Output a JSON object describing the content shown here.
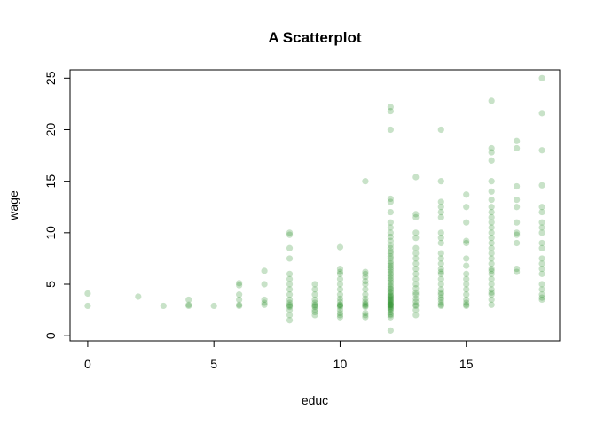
{
  "chart_data": {
    "type": "scatter",
    "title": "A Scatterplot",
    "xlabel": "educ",
    "ylabel": "wage",
    "xlim": [
      -0.7,
      18.7
    ],
    "ylim": [
      -0.5,
      25.8
    ],
    "xticks": [
      0,
      5,
      10,
      15
    ],
    "yticks": [
      0,
      5,
      10,
      15,
      20,
      25
    ],
    "grid": false,
    "legend": "none",
    "point_color": "#228B22",
    "point_opacity": 0.25,
    "series": [
      {
        "points": [
          [
            0,
            4.1
          ],
          [
            0,
            2.9
          ],
          [
            2,
            3.8
          ],
          [
            3,
            2.9
          ],
          [
            4,
            3.5
          ],
          [
            4,
            3.0
          ],
          [
            4,
            2.9
          ],
          [
            5,
            2.9
          ],
          [
            6,
            5.1
          ],
          [
            6,
            4.9
          ],
          [
            6,
            4.0
          ],
          [
            6,
            3.5
          ],
          [
            6,
            3.0
          ],
          [
            6,
            2.9
          ],
          [
            7,
            6.3
          ],
          [
            7,
            5.0
          ],
          [
            7,
            3.5
          ],
          [
            7,
            3.2
          ],
          [
            7,
            3.0
          ],
          [
            8,
            10.0
          ],
          [
            8,
            9.8
          ],
          [
            8,
            8.5
          ],
          [
            8,
            7.5
          ],
          [
            8,
            6.0
          ],
          [
            8,
            5.5
          ],
          [
            8,
            5.0
          ],
          [
            8,
            4.5
          ],
          [
            8,
            4.0
          ],
          [
            8,
            3.5
          ],
          [
            8,
            3.2
          ],
          [
            8,
            3.0
          ],
          [
            8,
            2.9
          ],
          [
            8,
            2.8
          ],
          [
            8,
            2.5
          ],
          [
            8,
            2.0
          ],
          [
            8,
            1.5
          ],
          [
            9,
            5.0
          ],
          [
            9,
            4.5
          ],
          [
            9,
            4.0
          ],
          [
            9,
            3.5
          ],
          [
            9,
            3.2
          ],
          [
            9,
            3.0
          ],
          [
            9,
            2.9
          ],
          [
            9,
            2.8
          ],
          [
            9,
            2.5
          ],
          [
            9,
            2.3
          ],
          [
            9,
            2.0
          ],
          [
            10,
            8.6
          ],
          [
            10,
            6.5
          ],
          [
            10,
            6.2
          ],
          [
            10,
            6.0
          ],
          [
            10,
            5.5
          ],
          [
            10,
            5.0
          ],
          [
            10,
            4.5
          ],
          [
            10,
            4.0
          ],
          [
            10,
            3.6
          ],
          [
            10,
            3.3
          ],
          [
            10,
            3.0
          ],
          [
            10,
            3.0
          ],
          [
            10,
            2.9
          ],
          [
            10,
            2.8
          ],
          [
            10,
            2.5
          ],
          [
            10,
            2.2
          ],
          [
            10,
            2.0
          ],
          [
            10,
            1.8
          ],
          [
            11,
            15.0
          ],
          [
            11,
            6.2
          ],
          [
            11,
            6.0
          ],
          [
            11,
            5.7
          ],
          [
            11,
            5.3
          ],
          [
            11,
            5.0
          ],
          [
            11,
            4.5
          ],
          [
            11,
            4.0
          ],
          [
            11,
            3.6
          ],
          [
            11,
            3.3
          ],
          [
            11,
            3.1
          ],
          [
            11,
            3.0
          ],
          [
            11,
            2.9
          ],
          [
            11,
            2.8
          ],
          [
            11,
            2.2
          ],
          [
            11,
            2.0
          ],
          [
            11,
            1.8
          ],
          [
            12,
            22.2
          ],
          [
            12,
            21.8
          ],
          [
            12,
            20.0
          ],
          [
            12,
            13.3
          ],
          [
            12,
            13.0
          ],
          [
            12,
            12.0
          ],
          [
            12,
            11.0
          ],
          [
            12,
            10.5
          ],
          [
            12,
            10.0
          ],
          [
            12,
            9.6
          ],
          [
            12,
            9.2
          ],
          [
            12,
            8.8
          ],
          [
            12,
            8.5
          ],
          [
            12,
            8.2
          ],
          [
            12,
            8.0
          ],
          [
            12,
            7.7
          ],
          [
            12,
            7.5
          ],
          [
            12,
            7.2
          ],
          [
            12,
            7.0
          ],
          [
            12,
            6.8
          ],
          [
            12,
            6.6
          ],
          [
            12,
            6.4
          ],
          [
            12,
            6.2
          ],
          [
            12,
            6.0
          ],
          [
            12,
            5.8
          ],
          [
            12,
            5.6
          ],
          [
            12,
            5.4
          ],
          [
            12,
            5.2
          ],
          [
            12,
            5.0
          ],
          [
            12,
            4.8
          ],
          [
            12,
            4.6
          ],
          [
            12,
            4.5
          ],
          [
            12,
            4.3
          ],
          [
            12,
            4.2
          ],
          [
            12,
            4.0
          ],
          [
            12,
            3.9
          ],
          [
            12,
            3.8
          ],
          [
            12,
            3.7
          ],
          [
            12,
            3.6
          ],
          [
            12,
            3.5
          ],
          [
            12,
            3.4
          ],
          [
            12,
            3.3
          ],
          [
            12,
            3.2
          ],
          [
            12,
            3.1
          ],
          [
            12,
            3.0
          ],
          [
            12,
            3.0
          ],
          [
            12,
            2.9
          ],
          [
            12,
            2.8
          ],
          [
            12,
            2.7
          ],
          [
            12,
            2.6
          ],
          [
            12,
            2.5
          ],
          [
            12,
            2.3
          ],
          [
            12,
            2.1
          ],
          [
            12,
            2.0
          ],
          [
            12,
            1.8
          ],
          [
            12,
            0.5
          ],
          [
            13,
            15.4
          ],
          [
            13,
            11.8
          ],
          [
            13,
            11.5
          ],
          [
            13,
            10.0
          ],
          [
            13,
            9.5
          ],
          [
            13,
            8.5
          ],
          [
            13,
            8.0
          ],
          [
            13,
            7.5
          ],
          [
            13,
            7.0
          ],
          [
            13,
            6.5
          ],
          [
            13,
            6.0
          ],
          [
            13,
            5.5
          ],
          [
            13,
            5.0
          ],
          [
            13,
            4.6
          ],
          [
            13,
            4.2
          ],
          [
            13,
            4.0
          ],
          [
            13,
            3.6
          ],
          [
            13,
            3.3
          ],
          [
            13,
            3.0
          ],
          [
            13,
            2.9
          ],
          [
            13,
            2.5
          ],
          [
            13,
            2.0
          ],
          [
            14,
            20.0
          ],
          [
            14,
            15.0
          ],
          [
            14,
            13.0
          ],
          [
            14,
            12.5
          ],
          [
            14,
            12.0
          ],
          [
            14,
            11.5
          ],
          [
            14,
            10.0
          ],
          [
            14,
            9.5
          ],
          [
            14,
            9.0
          ],
          [
            14,
            8.0
          ],
          [
            14,
            7.5
          ],
          [
            14,
            7.0
          ],
          [
            14,
            6.5
          ],
          [
            14,
            6.2
          ],
          [
            14,
            6.0
          ],
          [
            14,
            5.5
          ],
          [
            14,
            5.0
          ],
          [
            14,
            4.5
          ],
          [
            14,
            4.2
          ],
          [
            14,
            4.0
          ],
          [
            14,
            3.7
          ],
          [
            14,
            3.5
          ],
          [
            14,
            3.2
          ],
          [
            14,
            3.0
          ],
          [
            14,
            2.9
          ],
          [
            15,
            13.7
          ],
          [
            15,
            12.5
          ],
          [
            15,
            11.0
          ],
          [
            15,
            9.2
          ],
          [
            15,
            9.0
          ],
          [
            15,
            7.5
          ],
          [
            15,
            6.8
          ],
          [
            15,
            6.0
          ],
          [
            15,
            5.5
          ],
          [
            15,
            5.0
          ],
          [
            15,
            4.5
          ],
          [
            15,
            4.0
          ],
          [
            15,
            3.5
          ],
          [
            15,
            3.2
          ],
          [
            15,
            3.0
          ],
          [
            15,
            2.9
          ],
          [
            16,
            22.8
          ],
          [
            16,
            18.2
          ],
          [
            16,
            17.8
          ],
          [
            16,
            17.0
          ],
          [
            16,
            15.0
          ],
          [
            16,
            14.0
          ],
          [
            16,
            13.2
          ],
          [
            16,
            12.5
          ],
          [
            16,
            12.0
          ],
          [
            16,
            11.5
          ],
          [
            16,
            11.0
          ],
          [
            16,
            10.5
          ],
          [
            16,
            10.0
          ],
          [
            16,
            9.5
          ],
          [
            16,
            9.0
          ],
          [
            16,
            8.5
          ],
          [
            16,
            8.0
          ],
          [
            16,
            7.5
          ],
          [
            16,
            7.0
          ],
          [
            16,
            6.5
          ],
          [
            16,
            6.3
          ],
          [
            16,
            6.0
          ],
          [
            16,
            5.5
          ],
          [
            16,
            5.0
          ],
          [
            16,
            4.5
          ],
          [
            16,
            4.2
          ],
          [
            16,
            4.0
          ],
          [
            16,
            3.5
          ],
          [
            16,
            3.0
          ],
          [
            17,
            18.9
          ],
          [
            17,
            18.2
          ],
          [
            17,
            14.5
          ],
          [
            17,
            13.2
          ],
          [
            17,
            12.5
          ],
          [
            17,
            11.0
          ],
          [
            17,
            10.0
          ],
          [
            17,
            9.8
          ],
          [
            17,
            9.0
          ],
          [
            17,
            6.5
          ],
          [
            17,
            6.2
          ],
          [
            18,
            25.0
          ],
          [
            18,
            21.6
          ],
          [
            18,
            18.0
          ],
          [
            18,
            14.6
          ],
          [
            18,
            12.5
          ],
          [
            18,
            12.0
          ],
          [
            18,
            11.0
          ],
          [
            18,
            10.5
          ],
          [
            18,
            10.0
          ],
          [
            18,
            9.0
          ],
          [
            18,
            8.5
          ],
          [
            18,
            7.5
          ],
          [
            18,
            7.0
          ],
          [
            18,
            6.5
          ],
          [
            18,
            6.0
          ],
          [
            18,
            5.0
          ],
          [
            18,
            4.5
          ],
          [
            18,
            4.0
          ],
          [
            18,
            3.7
          ],
          [
            18,
            3.5
          ]
        ]
      }
    ]
  }
}
